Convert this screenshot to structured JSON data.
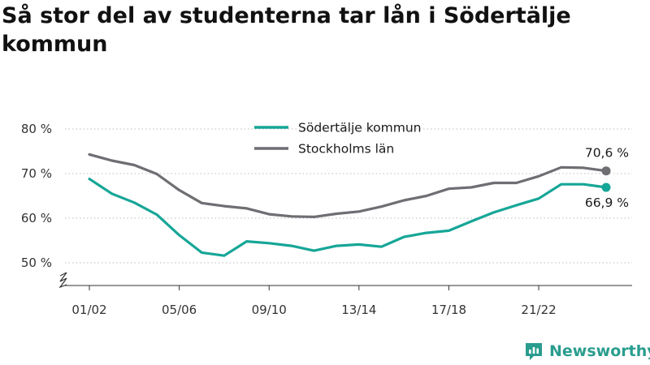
{
  "title": "Så stor del av studenterna tar lån i Södertälje kommun",
  "brand": {
    "name": "Newsworthy",
    "icon": "newsworthy-logo-icon",
    "color": "#2a9d8f"
  },
  "chart_data": {
    "type": "line",
    "x": [
      "01/02",
      "02/03",
      "03/04",
      "04/05",
      "05/06",
      "06/07",
      "07/08",
      "08/09",
      "09/10",
      "10/11",
      "11/12",
      "12/13",
      "13/14",
      "14/15",
      "15/16",
      "16/17",
      "17/18",
      "18/19",
      "19/20",
      "20/21",
      "21/22",
      "22/23",
      "23/24",
      "24/25"
    ],
    "x_tick_labels": [
      "01/02",
      "05/06",
      "09/10",
      "13/14",
      "17/18",
      "21/22"
    ],
    "y_ticks": [
      50,
      60,
      70,
      80
    ],
    "y_tick_labels": [
      "50 %",
      "60 %",
      "70 %",
      "80 %"
    ],
    "ylim": [
      44,
      83
    ],
    "y_axis_break": true,
    "grid": true,
    "legend_position": "top-center",
    "series": [
      {
        "name": "Södertälje kommun",
        "color": "#16a697",
        "values": [
          68.8,
          65.5,
          63.5,
          60.8,
          56.2,
          52.3,
          51.6,
          54.8,
          54.4,
          53.8,
          52.7,
          53.8,
          54.1,
          53.6,
          55.8,
          56.7,
          57.2,
          59.3,
          61.3,
          62.9,
          64.4,
          67.6,
          67.6,
          66.9
        ],
        "end_label": "66,9 %"
      },
      {
        "name": "Stockholms län",
        "color": "#6e6e73",
        "values": [
          74.3,
          72.9,
          71.9,
          69.9,
          66.3,
          63.4,
          62.7,
          62.2,
          60.9,
          60.4,
          60.3,
          61.0,
          61.5,
          62.6,
          64.0,
          65.0,
          66.6,
          66.9,
          67.9,
          67.9,
          69.4,
          71.4,
          71.3,
          70.6
        ],
        "end_label": "70,6 %"
      }
    ]
  }
}
